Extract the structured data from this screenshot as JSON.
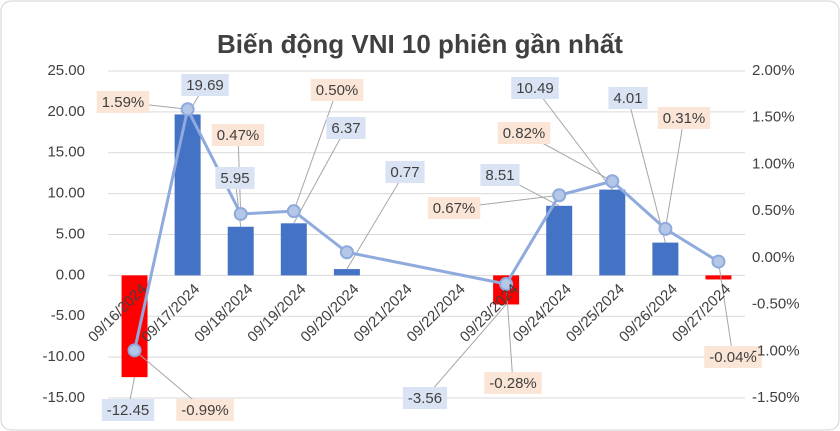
{
  "chart_data": {
    "type": "bar_line",
    "title": "Biến động VNI 10 phiên gần nhất",
    "categories": [
      "09/16/2024",
      "09/17/2024",
      "09/18/2024",
      "09/19/2024",
      "09/20/2024",
      "09/21/2024",
      "09/22/2024",
      "09/23/2024",
      "09/24/2024",
      "09/25/2024",
      "09/26/2024",
      "09/27/2024"
    ],
    "series": [
      {
        "type": "bar",
        "color": "#4472c4",
        "negative_color": "#ff0000",
        "values": [
          -12.45,
          19.69,
          5.95,
          6.37,
          0.77,
          null,
          null,
          -3.56,
          8.51,
          10.49,
          4.01,
          -0.5
        ],
        "value_labels": [
          "-12.45",
          "19.69",
          "5.95",
          "6.37",
          "0.77",
          null,
          null,
          "-3.56",
          "8.51",
          "10.49",
          "4.01",
          null
        ],
        "label_color": "#dae3f3"
      },
      {
        "type": "line",
        "axis": "y2",
        "color": "#8faadc",
        "values": [
          -0.99,
          1.59,
          0.47,
          0.5,
          0.06,
          null,
          null,
          -0.28,
          0.67,
          0.82,
          0.31,
          -0.04
        ],
        "value_labels": [
          "-0.99%",
          "1.59%",
          "0.47%",
          "0.50%",
          null,
          null,
          null,
          "-0.28%",
          "0.67%",
          "0.82%",
          "0.31%",
          "-0.04%"
        ],
        "label_color": "#fbe5d6",
        "connect_gaps": true
      }
    ],
    "ylim": [
      -15,
      25
    ],
    "yticks": [
      {
        "value": -15,
        "label": "-15.00"
      },
      {
        "value": -10,
        "label": "-10.00"
      },
      {
        "value": -5,
        "label": "-5.00"
      },
      {
        "value": 0,
        "label": "0.00"
      },
      {
        "value": 5,
        "label": "5.00"
      },
      {
        "value": 10,
        "label": "10.00"
      },
      {
        "value": 15,
        "label": "15.00"
      },
      {
        "value": 20,
        "label": "20.00"
      },
      {
        "value": 25,
        "label": "25.00"
      }
    ],
    "y2lim": [
      -1.5,
      2
    ],
    "y2ticks": [
      {
        "value": -1.5,
        "label": "-1.50%"
      },
      {
        "value": -1,
        "label": "-1.00%"
      },
      {
        "value": -0.5,
        "label": "-0.50%"
      },
      {
        "value": 0,
        "label": "0.00%"
      },
      {
        "value": 0.5,
        "label": "0.50%"
      },
      {
        "value": 1,
        "label": "1.00%"
      },
      {
        "value": 1.5,
        "label": "1.50%"
      },
      {
        "value": 2,
        "label": "2.00%"
      }
    ],
    "grid": true
  }
}
